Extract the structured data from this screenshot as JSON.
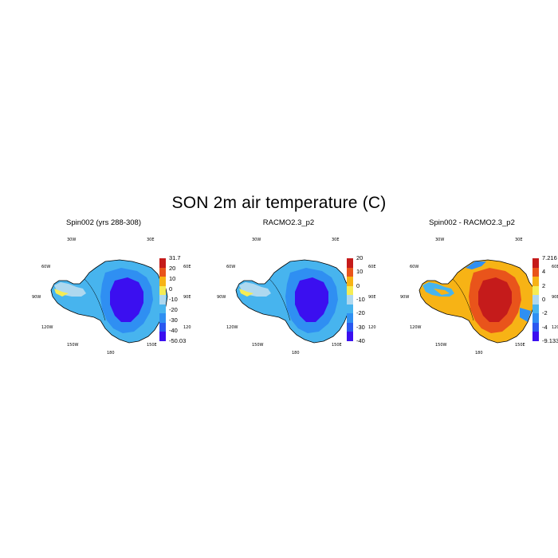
{
  "title": "SON 2m air temperature (C)",
  "lon_labels": [
    "30W",
    "30E",
    "60W",
    "60E",
    "90W",
    "90E",
    "120W",
    "120E",
    "150W",
    "150E",
    "180"
  ],
  "panels": [
    {
      "title": "Spin002 (yrs 288-308)",
      "palette": "abs",
      "colorbar": {
        "colors": [
          "#3b0ff0",
          "#2a58f0",
          "#2f8ff2",
          "#47b4ee",
          "#aed8ef",
          "#f5ec54",
          "#f7b315",
          "#e9541b",
          "#c51b1b"
        ],
        "labels": [
          "31.7",
          "20",
          "10",
          "0",
          "-10",
          "-20",
          "-30",
          "-40",
          "-50.03"
        ]
      }
    },
    {
      "title": "RACMO2.3_p2",
      "palette": "abs",
      "colorbar": {
        "colors": [
          "#3b0ff0",
          "#2a58f0",
          "#2f8ff2",
          "#47b4ee",
          "#aed8ef",
          "#f5ec54",
          "#f7b315",
          "#e9541b",
          "#c51b1b"
        ],
        "labels": [
          "20",
          "10",
          "0",
          "-10",
          "-20",
          "-30",
          "-40"
        ]
      }
    },
    {
      "title": "Spin002 - RACMO2.3_p2",
      "palette": "diff",
      "colorbar": {
        "colors": [
          "#3b0ff0",
          "#2a58f0",
          "#2f8ff2",
          "#47b4ee",
          "#aed8ef",
          "#f5ec54",
          "#f7b315",
          "#e9541b",
          "#c51b1b"
        ],
        "labels": [
          "7.216",
          "4",
          "2",
          "0",
          "-2",
          "-4",
          "-9.133"
        ]
      }
    }
  ]
}
